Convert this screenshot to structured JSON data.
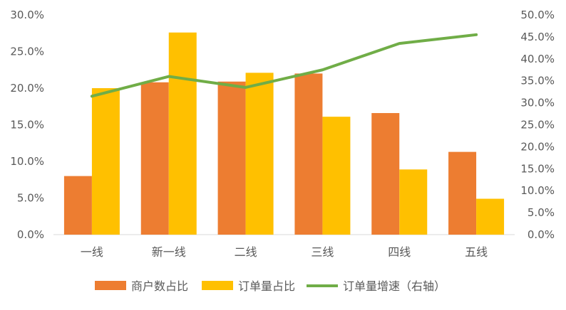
{
  "chart_data": {
    "type": "bar",
    "categories": [
      "一线",
      "新一线",
      "二线",
      "三线",
      "四线",
      "五线"
    ],
    "series": [
      {
        "name": "商户数占比",
        "type": "bar",
        "axis": "left",
        "color": "#ED7D31",
        "values": [
          8.0,
          20.8,
          20.9,
          22.0,
          16.6,
          11.3
        ]
      },
      {
        "name": "订单量占比",
        "type": "bar",
        "axis": "left",
        "color": "#FFC000",
        "values": [
          20.0,
          27.6,
          22.1,
          16.1,
          8.9,
          4.9
        ]
      },
      {
        "name": "订单量增速（右轴）",
        "type": "line",
        "axis": "right",
        "color": "#70AD47",
        "values": [
          31.5,
          36.0,
          33.5,
          37.5,
          43.5,
          45.5
        ]
      }
    ],
    "y_left": {
      "min": 0,
      "max": 30,
      "step": 5,
      "ticks": [
        "0.0%",
        "5.0%",
        "10.0%",
        "15.0%",
        "20.0%",
        "25.0%",
        "30.0%"
      ]
    },
    "y_right": {
      "min": 0,
      "max": 50,
      "step": 5,
      "ticks": [
        "0.0%",
        "5.0%",
        "10.0%",
        "15.0%",
        "20.0%",
        "25.0%",
        "30.0%",
        "35.0%",
        "40.0%",
        "45.0%",
        "50.0%"
      ]
    },
    "grid": false,
    "legend_position": "bottom",
    "title": "",
    "xlabel": "",
    "ylabel": ""
  }
}
